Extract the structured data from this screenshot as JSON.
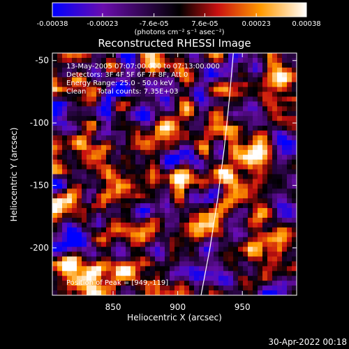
{
  "chart_data": {
    "type": "heatmap",
    "title": "Reconstructed RHESSI Image",
    "xlabel": "Heliocentric X (arcsec)",
    "ylabel": "Heliocentric Y (arcsec)",
    "xlim": [
      803,
      992
    ],
    "ylim": [
      -238,
      -44
    ],
    "xticks": [
      850,
      900,
      950
    ],
    "yticks": [
      -50,
      -100,
      -150,
      -200
    ],
    "colorbar": {
      "label": "(photons cm⁻² s⁻¹ asec⁻²)",
      "min": -0.00038,
      "max": 0.00038,
      "tick_labels": [
        "-0.00038",
        "-0.00023",
        "-7.6e-05",
        "7.6e-05",
        "0.00023",
        "0.00038"
      ],
      "colors": [
        "#0000ff",
        "#6a0dad",
        "#000000",
        "#c81010",
        "#ff9a00",
        "#ffffff"
      ]
    },
    "annotations": [
      "13-May-2005 07:07:00.000 to 07:13:00.000",
      "Detectors: 3F 4F 5F 6F 7F 8F, Att 0",
      "Energy Range: 25.0 - 50.0 keV",
      "Clean     Total counts: 7.35E+03"
    ],
    "peak_label": "Position of Peak = [949,-119]",
    "peak": [
      949,
      -119
    ],
    "limb_curve": [
      [
        943,
        -44
      ],
      [
        940,
        -80
      ],
      [
        936,
        -120
      ],
      [
        931,
        -160
      ],
      [
        925,
        -200
      ],
      [
        918,
        -238
      ]
    ]
  },
  "footer": {
    "date": "30-Apr-2022 00:18"
  }
}
